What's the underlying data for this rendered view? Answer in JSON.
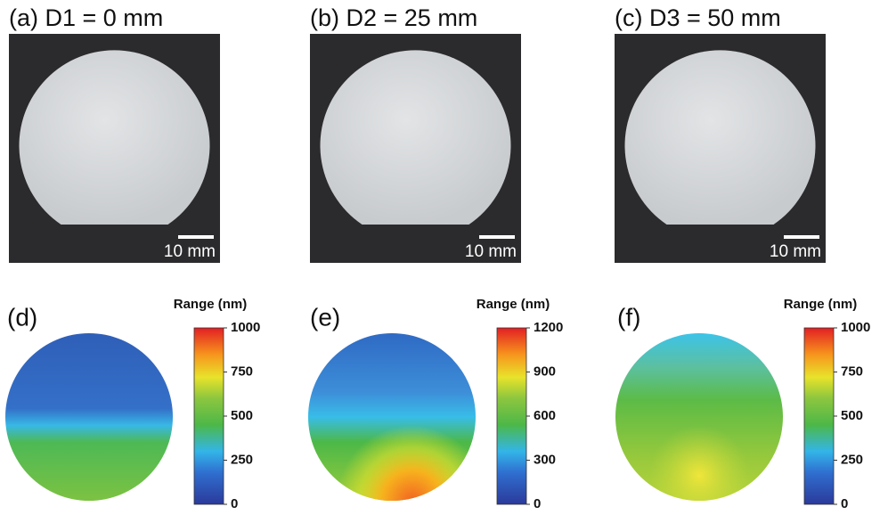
{
  "photos": [
    {
      "caption": "(a) D1 = 0 mm",
      "scale_bar": "10 mm"
    },
    {
      "caption": "(b) D2 = 25 mm",
      "scale_bar": "10 mm"
    },
    {
      "caption": "(c) D3 = 50 mm",
      "scale_bar": "10 mm"
    }
  ],
  "maps": [
    {
      "label": "(d)",
      "colorbar_title": "Range (nm)",
      "ticks": [
        0,
        250,
        500,
        750,
        1000
      ]
    },
    {
      "label": "(e)",
      "colorbar_title": "Range (nm)",
      "ticks": [
        0,
        300,
        600,
        900,
        1200
      ]
    },
    {
      "label": "(f)",
      "colorbar_title": "Range (nm)",
      "ticks": [
        0,
        250,
        500,
        750,
        1000
      ]
    }
  ]
}
